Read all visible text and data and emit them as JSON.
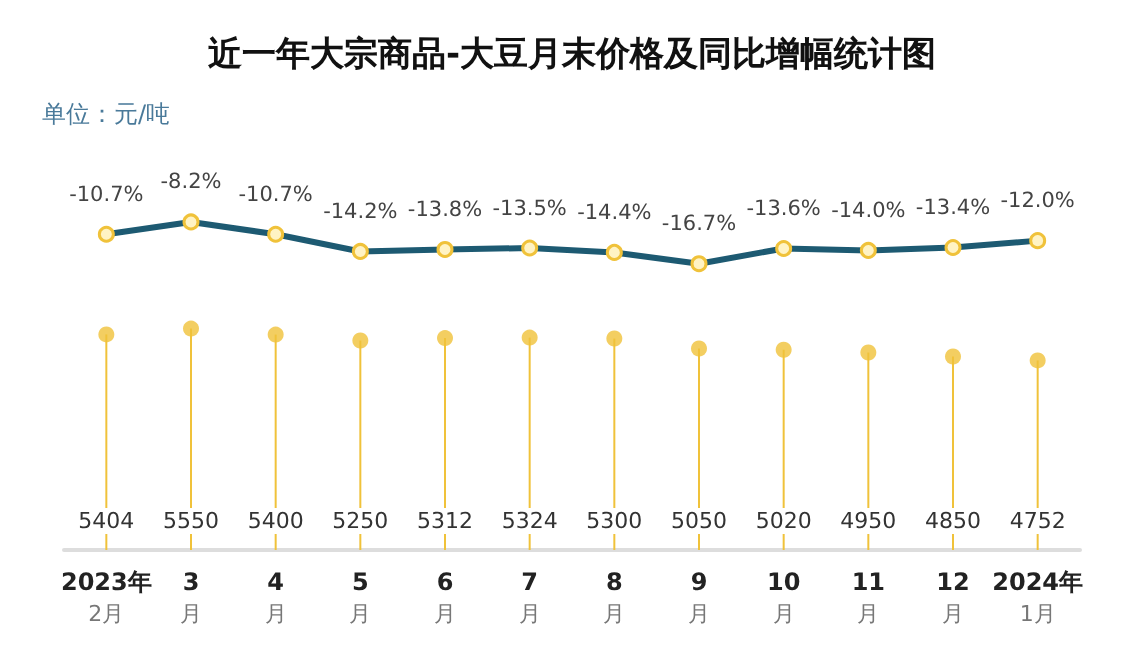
{
  "chart_data": [
    {
      "type": "line",
      "title": "近一年大宗商品-大豆月末价格及同比增幅统计图",
      "subtitle": "单位：元/吨",
      "categories": [
        null,
        null,
        null,
        null,
        null,
        null,
        null,
        null,
        null,
        null,
        null,
        null
      ],
      "series": [
        {
          "color": "#1d5a72",
          "values": [
            -10.7,
            -8.2,
            -10.7,
            -14.2,
            -13.8,
            -13.5,
            -14.4,
            -16.7,
            -13.6,
            -14.0,
            -13.4,
            -12.0
          ],
          "value_labels": [
            "-10.7%",
            "-8.2%",
            "-10.7%",
            "-14.2%",
            "-13.8%",
            "-13.5%",
            "-14.4%",
            "-16.7%",
            "-13.6%",
            "-14.0%",
            "-13.4%",
            "-12.0%"
          ]
        }
      ],
      "marker": "circle",
      "grid": false,
      "tick_labels": false
    },
    {
      "type": "lollipop",
      "categories": [
        "2023年\n2月",
        "3\n月",
        "4\n月",
        "5\n月",
        "6\n月",
        "7\n月",
        "8\n月",
        "9\n月",
        "10\n月",
        "11\n月",
        "12\n月",
        "2024年\n1月"
      ],
      "series": [
        {
          "color": "#f0c23a",
          "values": [
            5404,
            5550,
            5400,
            5250,
            5312,
            5324,
            5300,
            5050,
            5020,
            4950,
            4850,
            4752
          ]
        }
      ],
      "data_labels": true,
      "grid": false,
      "tick_labels": "x"
    }
  ]
}
